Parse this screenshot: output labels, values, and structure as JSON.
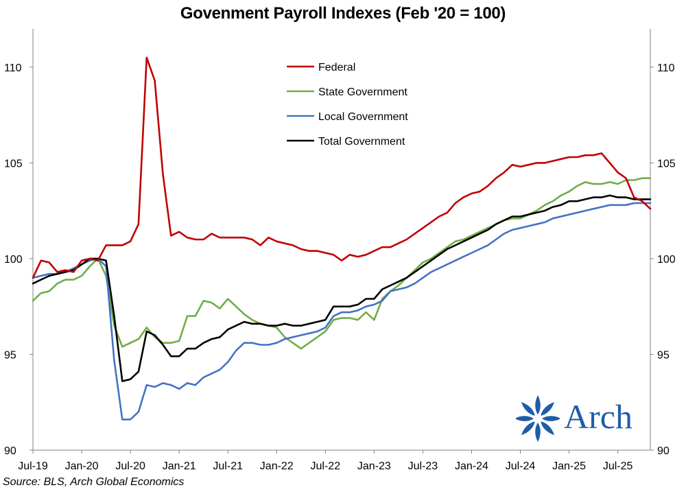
{
  "chart_data": {
    "type": "line",
    "title": "Govenment Payroll Indexes (Feb '20 = 100)",
    "source": "Source: BLS, Arch Global Economics",
    "xlabel": "",
    "ylabel": "",
    "ylim": [
      90,
      112
    ],
    "yticks": [
      90,
      95,
      100,
      105,
      110
    ],
    "dual_y_axis": true,
    "x_tick_labels": [
      "Jul-19",
      "Jan-20",
      "Jul-20",
      "Jan-21",
      "Jul-21",
      "Jan-22",
      "Jul-22",
      "Jan-23",
      "Jul-23",
      "Jan-24",
      "Jul-24",
      "Jan-25",
      "Jul-25"
    ],
    "x_start": "2019-07",
    "x_end": "2025-07",
    "grid": false,
    "legend_position": "top-center",
    "series": [
      {
        "name": "Federal",
        "color": "#c00000",
        "values": [
          99.0,
          99.9,
          99.8,
          99.3,
          99.4,
          99.3,
          99.9,
          100.0,
          99.9,
          100.7,
          100.7,
          100.7,
          100.9,
          101.8,
          110.5,
          109.3,
          104.4,
          101.2,
          101.4,
          101.1,
          101.0,
          101.0,
          101.3,
          101.1,
          101.1,
          101.1,
          101.1,
          101.0,
          100.7,
          101.1,
          100.9,
          100.8,
          100.7,
          100.5,
          100.4,
          100.4,
          100.3,
          100.2,
          99.9,
          100.2,
          100.1,
          100.2,
          100.4,
          100.6,
          100.6,
          100.8,
          101.0,
          101.3,
          101.6,
          101.9,
          102.2,
          102.4,
          102.9,
          103.2,
          103.4,
          103.5,
          103.8,
          104.2,
          104.5,
          104.9,
          104.8,
          104.9,
          105.0,
          105.0,
          105.1,
          105.2,
          105.3,
          105.3,
          105.4,
          105.4,
          105.5,
          105.0,
          104.5,
          104.2,
          103.2,
          103.0,
          102.6
        ]
      },
      {
        "name": "State Government",
        "color": "#70ad47",
        "values": [
          97.8,
          98.2,
          98.3,
          98.7,
          98.9,
          98.9,
          99.1,
          99.6,
          100.0,
          99.1,
          96.5,
          95.4,
          95.6,
          95.8,
          96.4,
          95.9,
          95.6,
          95.6,
          95.7,
          97.0,
          97.0,
          97.8,
          97.7,
          97.4,
          97.9,
          97.5,
          97.1,
          96.8,
          96.6,
          96.5,
          96.4,
          95.9,
          95.6,
          95.3,
          95.6,
          95.9,
          96.2,
          96.8,
          96.9,
          96.9,
          96.8,
          97.2,
          96.8,
          97.9,
          98.3,
          98.6,
          99.0,
          99.4,
          99.8,
          100.0,
          100.3,
          100.6,
          100.9,
          101.0,
          101.2,
          101.4,
          101.6,
          101.8,
          102.0,
          102.1,
          102.1,
          102.3,
          102.5,
          102.8,
          103.0,
          103.3,
          103.5,
          103.8,
          104.0,
          103.9,
          103.9,
          104.0,
          103.9,
          104.1,
          104.1,
          104.2,
          104.2
        ]
      },
      {
        "name": "Local Government",
        "color": "#4472c4",
        "values": [
          99.0,
          99.1,
          99.2,
          99.2,
          99.3,
          99.5,
          99.7,
          99.9,
          100.0,
          99.6,
          94.7,
          91.6,
          91.6,
          92.0,
          93.4,
          93.3,
          93.5,
          93.4,
          93.2,
          93.5,
          93.4,
          93.8,
          94.0,
          94.2,
          94.6,
          95.2,
          95.6,
          95.6,
          95.5,
          95.5,
          95.6,
          95.8,
          95.9,
          96.0,
          96.1,
          96.2,
          96.4,
          97.0,
          97.2,
          97.2,
          97.3,
          97.5,
          97.6,
          97.8,
          98.3,
          98.4,
          98.5,
          98.7,
          99.0,
          99.3,
          99.5,
          99.7,
          99.9,
          100.1,
          100.3,
          100.5,
          100.7,
          101.0,
          101.3,
          101.5,
          101.6,
          101.7,
          101.8,
          101.9,
          102.1,
          102.2,
          102.3,
          102.4,
          102.5,
          102.6,
          102.7,
          102.8,
          102.8,
          102.8,
          102.9,
          102.9,
          102.9
        ]
      },
      {
        "name": "Total Government",
        "color": "#000000",
        "values": [
          98.7,
          98.9,
          99.1,
          99.2,
          99.3,
          99.4,
          99.7,
          100.0,
          100.0,
          99.9,
          97.0,
          93.6,
          93.7,
          94.1,
          96.2,
          96.0,
          95.5,
          94.9,
          94.9,
          95.3,
          95.3,
          95.6,
          95.8,
          95.9,
          96.3,
          96.5,
          96.7,
          96.6,
          96.6,
          96.5,
          96.5,
          96.6,
          96.5,
          96.5,
          96.6,
          96.7,
          96.8,
          97.5,
          97.5,
          97.5,
          97.6,
          97.9,
          97.9,
          98.4,
          98.6,
          98.8,
          99.0,
          99.3,
          99.6,
          99.9,
          100.2,
          100.5,
          100.7,
          100.9,
          101.1,
          101.3,
          101.5,
          101.8,
          102.0,
          102.2,
          102.2,
          102.3,
          102.4,
          102.5,
          102.7,
          102.8,
          103.0,
          103.0,
          103.1,
          103.2,
          103.2,
          103.3,
          103.2,
          103.2,
          103.1,
          103.1,
          103.1
        ]
      }
    ]
  },
  "logo": {
    "name": "Arch",
    "color": "#1f5da8"
  }
}
